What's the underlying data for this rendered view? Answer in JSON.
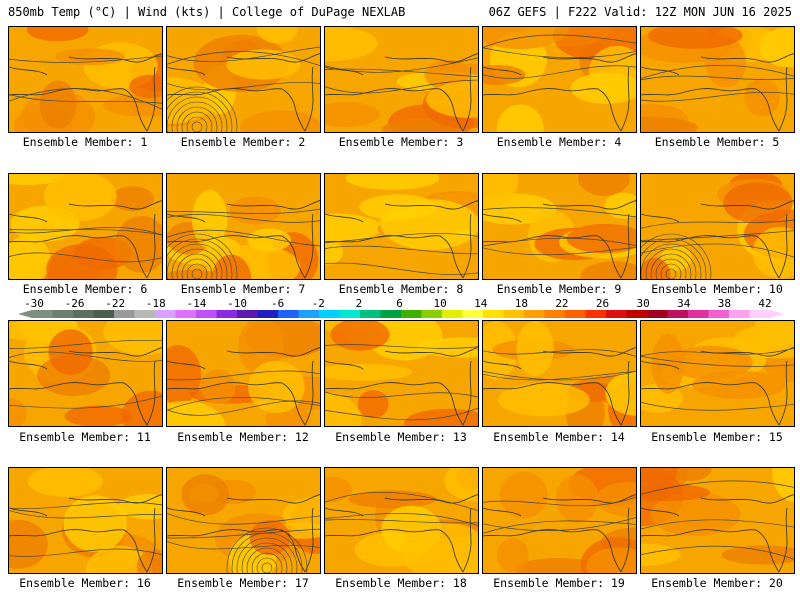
{
  "header": {
    "left": "850mb Temp (°C) | Wind (kts) | College of DuPage NEXLAB",
    "right": "06Z GEFS | F222 Valid: 12Z MON JUN 16 2025"
  },
  "members": [
    {
      "label": "Ensemble Member: 1"
    },
    {
      "label": "Ensemble Member: 2"
    },
    {
      "label": "Ensemble Member: 3"
    },
    {
      "label": "Ensemble Member: 4"
    },
    {
      "label": "Ensemble Member: 5"
    },
    {
      "label": "Ensemble Member: 6"
    },
    {
      "label": "Ensemble Member: 7"
    },
    {
      "label": "Ensemble Member: 8"
    },
    {
      "label": "Ensemble Member: 9"
    },
    {
      "label": "Ensemble Member: 10"
    },
    {
      "label": "Ensemble Member: 11"
    },
    {
      "label": "Ensemble Member: 12"
    },
    {
      "label": "Ensemble Member: 13"
    },
    {
      "label": "Ensemble Member: 14"
    },
    {
      "label": "Ensemble Member: 15"
    },
    {
      "label": "Ensemble Member: 16"
    },
    {
      "label": "Ensemble Member: 17"
    },
    {
      "label": "Ensemble Member: 18"
    },
    {
      "label": "Ensemble Member: 19"
    },
    {
      "label": "Ensemble Member: 20"
    }
  ],
  "colorbar": {
    "labels": [
      "-30",
      "-26",
      "-22",
      "-18",
      "-14",
      "-10",
      "-6",
      "-2",
      "2",
      "6",
      "10",
      "14",
      "18",
      "22",
      "26",
      "30",
      "34",
      "38",
      "42"
    ],
    "colors": [
      "#7f8f7f",
      "#6e7e6e",
      "#5e6e5e",
      "#4e5e4e",
      "#9a9a9a",
      "#b8b8b8",
      "#d8a0ff",
      "#e070ff",
      "#c050ff",
      "#8a2be2",
      "#5a1ab0",
      "#2020c0",
      "#2060ff",
      "#20a0ff",
      "#00d0ff",
      "#00e8d0",
      "#00c080",
      "#00a040",
      "#40b000",
      "#8ad000",
      "#e0f000",
      "#ffff40",
      "#ffe000",
      "#ffc000",
      "#ffa000",
      "#ff8000",
      "#ff6000",
      "#ff3000",
      "#e01010",
      "#c00000",
      "#a00020",
      "#c01060",
      "#e030a0",
      "#f060d0",
      "#ffa0f0",
      "#ffd0ff"
    ]
  }
}
